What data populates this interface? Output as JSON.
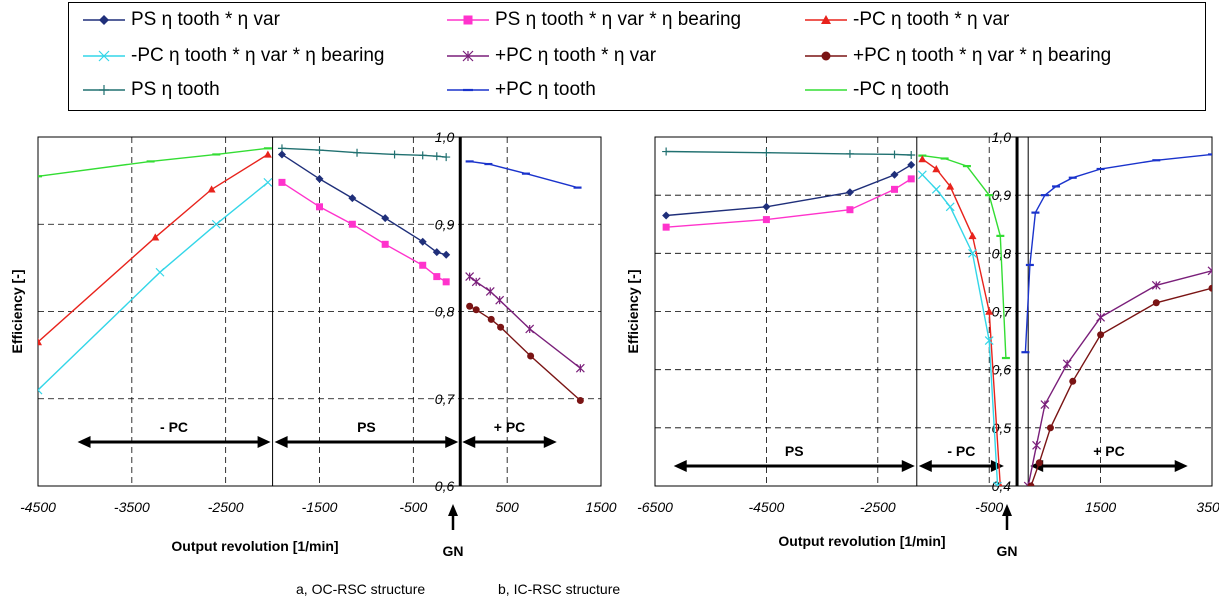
{
  "legend": [
    {
      "label": "PS η tooth * η var",
      "color": "#1f2f7a",
      "marker": "diamond"
    },
    {
      "label": "PS η tooth * η var * η bearing",
      "color": "#ff33cc",
      "marker": "square"
    },
    {
      "label": "-PC η tooth * η var",
      "color": "#e8231c",
      "marker": "triangle"
    },
    {
      "label": "-PC η tooth * η var * η bearing",
      "color": "#33d6e8",
      "marker": "x"
    },
    {
      "label": "+PC η tooth * η var",
      "color": "#7a1f7a",
      "marker": "star"
    },
    {
      "label": "+PC η tooth * η var * η bearing",
      "color": "#7a1414",
      "marker": "circle"
    },
    {
      "label": "PS η tooth",
      "color": "#207070",
      "marker": "plus"
    },
    {
      "label": "+PC η tooth",
      "color": "#1a33cc",
      "marker": "dash"
    },
    {
      "label": "-PC η tooth",
      "color": "#33dd33",
      "marker": "none"
    }
  ],
  "captions": {
    "a": "a, OC-RSC structure",
    "b": "b, IC-RSC structure"
  },
  "chart_data": [
    {
      "type": "line",
      "ylabel": "Efficiency [-]",
      "xlabel": "Output revolution [1/min]",
      "xlim": [
        -4500,
        1500
      ],
      "ylim": [
        0.6,
        1.0
      ],
      "x_ticks": [
        -4500,
        -3500,
        -2500,
        -1500,
        -500,
        500,
        1500
      ],
      "x_tick_labels": [
        "-4500",
        "-3500",
        "-2500",
        "-1500",
        "-500",
        "500",
        "1500"
      ],
      "y_ticks": [
        0.6,
        0.7,
        0.8,
        0.9,
        1.0
      ],
      "y_tick_labels": [
        "0,6",
        "0,7",
        "0,8",
        "0,9",
        "1,0"
      ],
      "x_zero": 0,
      "gn_label": "GN",
      "regions": [
        {
          "label": "- PC",
          "from": -4100,
          "to": -2000
        },
        {
          "label": "PS",
          "from": -2000,
          "to": 0
        },
        {
          "label": "+ PC",
          "from": 0,
          "to": 1050
        }
      ],
      "series": [
        {
          "name": "-PC η tooth",
          "color": "#33dd33",
          "marker": "dash",
          "x": [
            -4500,
            -3300,
            -2600,
            -2050
          ],
          "y": [
            0.955,
            0.972,
            0.98,
            0.987
          ]
        },
        {
          "name": "-PC η tooth * η var",
          "color": "#e8231c",
          "marker": "triangle",
          "x": [
            -4500,
            -3250,
            -2650,
            -2050
          ],
          "y": [
            0.765,
            0.885,
            0.94,
            0.98
          ]
        },
        {
          "name": "-PC η tooth * η var * η bearing",
          "color": "#33d6e8",
          "marker": "x",
          "x": [
            -4500,
            -3200,
            -2600,
            -2050
          ],
          "y": [
            0.71,
            0.845,
            0.9,
            0.948
          ]
        },
        {
          "name": "PS η tooth",
          "color": "#207070",
          "marker": "plus",
          "x": [
            -1900,
            -1500,
            -1100,
            -700,
            -400,
            -250,
            -150
          ],
          "y": [
            0.987,
            0.985,
            0.982,
            0.98,
            0.979,
            0.978,
            0.977
          ]
        },
        {
          "name": "PS η tooth * η var",
          "color": "#1f2f7a",
          "marker": "diamond",
          "x": [
            -1900,
            -1500,
            -1150,
            -800,
            -400,
            -250,
            -150
          ],
          "y": [
            0.98,
            0.952,
            0.93,
            0.907,
            0.88,
            0.868,
            0.865
          ]
        },
        {
          "name": "PS η tooth * η var * η bearing",
          "color": "#ff33cc",
          "marker": "square",
          "x": [
            -1900,
            -1500,
            -1150,
            -800,
            -400,
            -250,
            -150
          ],
          "y": [
            0.948,
            0.92,
            0.9,
            0.877,
            0.853,
            0.84,
            0.834
          ]
        },
        {
          "name": "+PC η tooth",
          "color": "#1a33cc",
          "marker": "dash",
          "x": [
            100,
            300,
            700,
            1250
          ],
          "y": [
            0.972,
            0.969,
            0.958,
            0.942
          ]
        },
        {
          "name": "+PC η tooth * η var",
          "color": "#7a1f7a",
          "marker": "star",
          "x": [
            100,
            170,
            320,
            420,
            740,
            1280
          ],
          "y": [
            0.84,
            0.834,
            0.823,
            0.813,
            0.78,
            0.735
          ]
        },
        {
          "name": "+PC η tooth * η var * η bearing",
          "color": "#7a1414",
          "marker": "circle",
          "x": [
            100,
            170,
            330,
            430,
            750,
            1280
          ],
          "y": [
            0.806,
            0.802,
            0.791,
            0.782,
            0.749,
            0.698
          ]
        }
      ]
    },
    {
      "type": "line",
      "ylabel": "Efficiency [-]",
      "xlabel": "Output revolution [1/min]",
      "xlim": [
        -6500,
        3500
      ],
      "ylim": [
        0.4,
        1.0
      ],
      "x_ticks": [
        -6500,
        -4500,
        -2500,
        -500,
        1500,
        3500
      ],
      "x_tick_labels": [
        "-6500",
        "-4500",
        "-2500",
        "-500",
        "1500",
        "3500"
      ],
      "y_ticks": [
        0.4,
        0.5,
        0.6,
        0.7,
        0.8,
        0.9,
        1.0
      ],
      "y_tick_labels": [
        "0,4",
        "0,5",
        "0,6",
        "0,7",
        "0,8",
        "0,9",
        "1,0"
      ],
      "x_zero": 0,
      "gn_label": "GN",
      "regions": [
        {
          "label": "PS",
          "from": -6200,
          "to": -1800
        },
        {
          "label": "- PC",
          "from": -1800,
          "to": -200
        },
        {
          "label": "+ PC",
          "from": 200,
          "to": 3100
        }
      ],
      "series": [
        {
          "name": "PS η tooth",
          "color": "#207070",
          "marker": "plus",
          "x": [
            -6300,
            -4500,
            -3000,
            -2200,
            -1900
          ],
          "y": [
            0.975,
            0.973,
            0.971,
            0.97,
            0.969
          ]
        },
        {
          "name": "PS η tooth * η var",
          "color": "#1f2f7a",
          "marker": "diamond",
          "x": [
            -6300,
            -4500,
            -3000,
            -2200,
            -1900
          ],
          "y": [
            0.865,
            0.88,
            0.905,
            0.935,
            0.952
          ]
        },
        {
          "name": "PS η tooth * η var * η bearing",
          "color": "#ff33cc",
          "marker": "square",
          "x": [
            -6300,
            -4500,
            -3000,
            -2200,
            -1900
          ],
          "y": [
            0.845,
            0.858,
            0.875,
            0.91,
            0.928
          ]
        },
        {
          "name": "-PC η tooth",
          "color": "#33dd33",
          "marker": "dash",
          "x": [
            -1700,
            -1300,
            -900,
            -500,
            -300,
            -200
          ],
          "y": [
            0.968,
            0.963,
            0.95,
            0.9,
            0.83,
            0.62
          ]
        },
        {
          "name": "-PC η tooth * η var",
          "color": "#e8231c",
          "marker": "triangle",
          "x": [
            -1700,
            -1450,
            -1200,
            -800,
            -500,
            -300
          ],
          "y": [
            0.962,
            0.945,
            0.915,
            0.83,
            0.7,
            0.4
          ]
        },
        {
          "name": "-PC η tooth * η var * η bearing",
          "color": "#33d6e8",
          "marker": "x",
          "x": [
            -1700,
            -1450,
            -1200,
            -800,
            -500,
            -350
          ],
          "y": [
            0.935,
            0.91,
            0.88,
            0.8,
            0.65,
            0.4
          ]
        },
        {
          "name": "+PC η tooth",
          "color": "#1a33cc",
          "marker": "dash",
          "x": [
            150,
            230,
            330,
            500,
            700,
            1000,
            1500,
            2500,
            3500
          ],
          "y": [
            0.63,
            0.78,
            0.87,
            0.9,
            0.915,
            0.93,
            0.945,
            0.96,
            0.97
          ]
        },
        {
          "name": "+PC η tooth * η var",
          "color": "#7a1f7a",
          "marker": "star",
          "x": [
            200,
            350,
            500,
            900,
            1500,
            2500,
            3500
          ],
          "y": [
            0.4,
            0.47,
            0.54,
            0.61,
            0.69,
            0.745,
            0.77
          ]
        },
        {
          "name": "+PC η tooth * η var * η bearing",
          "color": "#7a1414",
          "marker": "circle",
          "x": [
            250,
            400,
            600,
            1000,
            1500,
            2500,
            3500
          ],
          "y": [
            0.4,
            0.44,
            0.5,
            0.58,
            0.66,
            0.715,
            0.74
          ]
        }
      ]
    }
  ]
}
